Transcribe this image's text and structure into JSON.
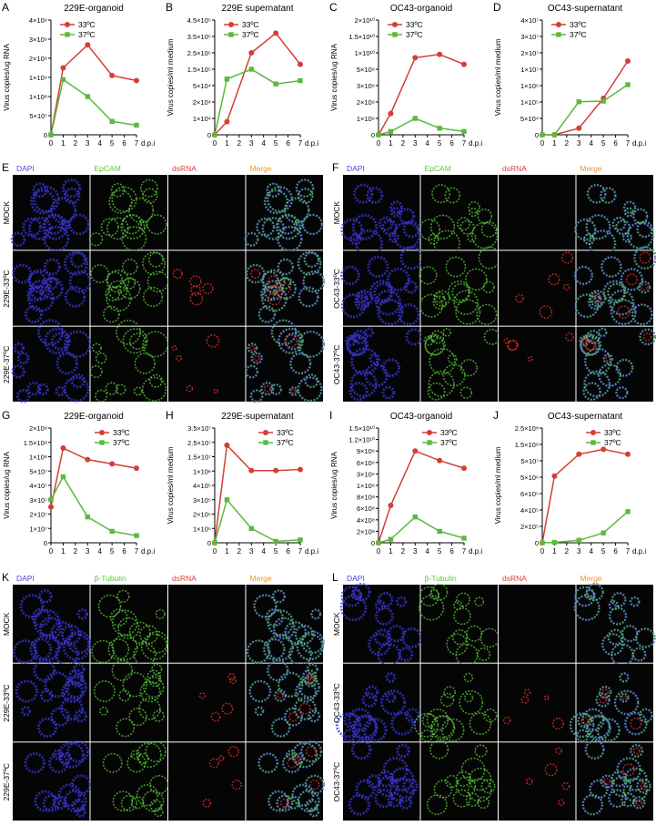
{
  "chart_data": [
    {
      "type": "line",
      "panel": "A",
      "title": "229E-organoid",
      "ylabel": "Virus copies/ug RNA",
      "xlabel": "d.p.i",
      "x": [
        0,
        1,
        3,
        5,
        7
      ],
      "xlim": [
        0,
        7
      ],
      "xticks": [
        0,
        1,
        2,
        3,
        4,
        5,
        6,
        7
      ],
      "ylim": [
        0,
        4000000000
      ],
      "yticks": [
        0,
        {
          "value": 50000000,
          "label": "5×10⁷"
        },
        {
          "value": 100000000,
          "label": "1×10⁸"
        },
        {
          "value": 1000000000,
          "label": "1×10⁹"
        },
        {
          "value": 2000000000,
          "label": "2×10⁹"
        },
        {
          "value": 3000000000,
          "label": "3×10⁹"
        },
        {
          "value": 4000000000,
          "label": "4×10⁹"
        }
      ],
      "series": [
        {
          "name": "33ºC",
          "color": "#d33f35",
          "values": [
            0,
            1500000000,
            2700000000,
            1100000000,
            850000000
          ]
        },
        {
          "name": "37ºC",
          "color": "#5cb83e",
          "values": [
            0,
            900000000,
            100000000,
            35000000,
            25000000
          ]
        }
      ]
    },
    {
      "type": "line",
      "panel": "B",
      "title": "229E supernatant",
      "ylabel": "Virus copies/ml medium",
      "xlabel": "d.p.i",
      "x": [
        0,
        1,
        3,
        5,
        7
      ],
      "xlim": [
        0,
        7
      ],
      "xticks": [
        0,
        1,
        2,
        3,
        4,
        5,
        6,
        7
      ],
      "ylim": [
        0,
        450000
      ],
      "yticks": [
        0,
        {
          "value": 10000,
          "label": "1×10⁴"
        },
        {
          "value": 20000,
          "label": "2×10⁴"
        },
        {
          "value": 50000,
          "label": "5×10⁴"
        },
        {
          "value": 150000,
          "label": "1.5×10⁵"
        },
        {
          "value": 250000,
          "label": "2.5×10⁵"
        },
        {
          "value": 350000,
          "label": "3.5×10⁵"
        },
        {
          "value": 450000,
          "label": "4.5×10⁵"
        }
      ],
      "series": [
        {
          "name": "33ºC",
          "color": "#d33f35",
          "values": [
            0,
            8000,
            250000,
            370000,
            180000
          ]
        },
        {
          "name": "37ºC",
          "color": "#5cb83e",
          "values": [
            0,
            90000,
            150000,
            60000,
            80000
          ]
        }
      ]
    },
    {
      "type": "line",
      "panel": "C",
      "title": "OC43-organoid",
      "ylabel": "Virus copies/ug RNA",
      "xlabel": "d.p.i",
      "x": [
        0,
        1,
        3,
        5,
        7
      ],
      "xlim": [
        0,
        7
      ],
      "xticks": [
        0,
        1,
        2,
        3,
        4,
        5,
        6,
        7
      ],
      "ylim": [
        0,
        20000000000
      ],
      "yticks": [
        0,
        {
          "value": 1000000000,
          "label": "1×10⁹"
        },
        {
          "value": 2000000000,
          "label": "2×10⁹"
        },
        {
          "value": 3000000000,
          "label": "3×10⁹"
        },
        {
          "value": 5000000000,
          "label": "5×10⁹"
        },
        {
          "value": 10000000000,
          "label": "1×10¹⁰"
        },
        {
          "value": 15000000000,
          "label": "1.5×10¹⁰"
        },
        {
          "value": 20000000000,
          "label": "2×10¹⁰"
        }
      ],
      "series": [
        {
          "name": "33ºC",
          "color": "#d33f35",
          "values": [
            0,
            1300000000,
            8500000000,
            9500000000,
            6500000000
          ]
        },
        {
          "name": "37ºC",
          "color": "#5cb83e",
          "values": [
            0,
            200000000,
            1000000000,
            400000000,
            200000000
          ]
        }
      ]
    },
    {
      "type": "line",
      "panel": "D",
      "title": "OC43-supernatant",
      "ylabel": "Virus copies/ml medium",
      "xlabel": "d.p.i",
      "x": [
        0,
        1,
        3,
        5,
        7
      ],
      "xlim": [
        0,
        7
      ],
      "xticks": [
        0,
        1,
        2,
        3,
        4,
        5,
        6,
        7
      ],
      "ylim": [
        0,
        40000000
      ],
      "yticks": [
        0,
        {
          "value": 50000,
          "label": "5×10⁴"
        },
        {
          "value": 100000,
          "label": "1×10⁵"
        },
        {
          "value": 1000000,
          "label": "1×10⁶"
        },
        {
          "value": 10000000,
          "label": "1×10⁷"
        },
        {
          "value": 20000000,
          "label": "2×10⁷"
        },
        {
          "value": 30000000,
          "label": "3×10⁷"
        },
        {
          "value": 40000000,
          "label": "4×10⁷"
        }
      ],
      "series": [
        {
          "name": "33ºC",
          "color": "#d33f35",
          "values": [
            0,
            0,
            20000,
            300000,
            15000000
          ]
        },
        {
          "name": "37ºC",
          "color": "#5cb83e",
          "values": [
            0,
            0,
            110000,
            150000,
            1500000
          ]
        }
      ]
    },
    {
      "type": "line",
      "panel": "G",
      "title": "229E-organoid",
      "ylabel": "Virus copies/ug RNA",
      "xlabel": "d.p.i",
      "x": [
        0,
        1,
        3,
        5,
        7
      ],
      "xlim": [
        0,
        7
      ],
      "xticks": [
        0,
        1,
        2,
        3,
        4,
        5,
        6,
        7
      ],
      "ylim": [
        0,
        200000000
      ],
      "yticks": [
        0,
        {
          "value": 10000000,
          "label": "1×10⁷"
        },
        {
          "value": 20000000,
          "label": "2×10⁷"
        },
        {
          "value": 30000000,
          "label": "3×10⁷"
        },
        {
          "value": 40000000,
          "label": "4×10⁷"
        },
        {
          "value": 50000000,
          "label": "5×10⁷"
        },
        {
          "value": 100000000,
          "label": "1×10⁸"
        },
        {
          "value": 150000000,
          "label": "1.5×10⁸"
        },
        {
          "value": 200000000,
          "label": "2×10⁸"
        }
      ],
      "series": [
        {
          "name": "33ºC",
          "color": "#d33f35",
          "values": [
            25000000,
            130000000,
            90000000,
            75000000,
            60000000
          ]
        },
        {
          "name": "37ºC",
          "color": "#5cb83e",
          "values": [
            30000000,
            46000000,
            18000000,
            8000000,
            5000000
          ]
        }
      ]
    },
    {
      "type": "line",
      "panel": "H",
      "title": "229E-supernatant",
      "ylabel": "Virus copies/ml medium",
      "xlabel": "d.p.i",
      "x": [
        0,
        1,
        3,
        5,
        7
      ],
      "xlim": [
        0,
        7
      ],
      "xticks": [
        0,
        1,
        2,
        3,
        4,
        5,
        6,
        7
      ],
      "ylim": [
        0,
        35000000
      ],
      "yticks": [
        0,
        {
          "value": 100000,
          "label": "1×10⁵"
        },
        {
          "value": 200000,
          "label": "2×10⁵"
        },
        {
          "value": 300000,
          "label": "3×10⁵"
        },
        {
          "value": 400000,
          "label": "4×10⁵"
        },
        {
          "value": 1000000,
          "label": "1×10⁶"
        },
        {
          "value": 15000000,
          "label": "1.5×10⁷"
        },
        {
          "value": 25000000,
          "label": "2.5×10⁷"
        },
        {
          "value": 35000000,
          "label": "3.5×10⁷"
        }
      ],
      "series": [
        {
          "name": "33ºC",
          "color": "#d33f35",
          "values": [
            0,
            23000000,
            1500000,
            1500000,
            2500000
          ]
        },
        {
          "name": "37ºC",
          "color": "#5cb83e",
          "values": [
            0,
            300000,
            100000,
            10000,
            20000
          ]
        }
      ]
    },
    {
      "type": "line",
      "panel": "I",
      "title": "OC43-organoid",
      "ylabel": "Virus copies/ug RNA",
      "xlabel": "d.p.i",
      "x": [
        0,
        1,
        3,
        5,
        7
      ],
      "xlim": [
        0,
        7
      ],
      "xticks": [
        0,
        1,
        2,
        3,
        4,
        5,
        6,
        7
      ],
      "ylim": [
        0,
        15000000000
      ],
      "yticks": [
        0,
        {
          "value": 200000000,
          "label": "2×10⁸"
        },
        {
          "value": 400000000,
          "label": "4×10⁸"
        },
        {
          "value": 600000000,
          "label": "6×10⁸"
        },
        {
          "value": 800000000,
          "label": "8×10⁸"
        },
        {
          "value": 1000000000,
          "label": "1×10⁹"
        },
        {
          "value": 3000000000,
          "label": "3×10⁹"
        },
        {
          "value": 6000000000,
          "label": "6×10⁹"
        },
        {
          "value": 9000000000,
          "label": "9×10⁹"
        },
        {
          "value": 12000000000,
          "label": "1.2×10¹⁰"
        },
        {
          "value": 15000000000,
          "label": "1.5×10¹⁰"
        }
      ],
      "series": [
        {
          "name": "33ºC",
          "color": "#d33f35",
          "values": [
            0,
            650000000,
            9000000000,
            6500000000,
            4500000000
          ]
        },
        {
          "name": "37ºC",
          "color": "#5cb83e",
          "values": [
            0,
            60000000,
            450000000,
            200000000,
            80000000
          ]
        }
      ]
    },
    {
      "type": "line",
      "panel": "J",
      "title": "OC43-supernatant",
      "ylabel": "Virus copies/ml medium",
      "xlabel": "d.p.i",
      "x": [
        0,
        1,
        3,
        5,
        7
      ],
      "xlim": [
        0,
        7
      ],
      "xticks": [
        0,
        1,
        2,
        3,
        4,
        5,
        6,
        7
      ],
      "ylim": [
        0,
        250000000
      ],
      "yticks": [
        0,
        {
          "value": 200000,
          "label": "2×10⁵"
        },
        {
          "value": 400000,
          "label": "4×10⁵"
        },
        {
          "value": 600000,
          "label": "6×10⁵"
        },
        {
          "value": 5000000,
          "label": "5×10⁶"
        },
        {
          "value": 50000000,
          "label": "5×10⁷"
        },
        {
          "value": 150000000,
          "label": "1.5×10⁸"
        },
        {
          "value": 250000000,
          "label": "2.5×10⁸"
        }
      ],
      "series": [
        {
          "name": "33ºC",
          "color": "#d33f35",
          "values": [
            0,
            8000000,
            90000000,
            120000000,
            90000000
          ]
        },
        {
          "name": "37ºC",
          "color": "#5cb83e",
          "values": [
            0,
            5000,
            30000,
            120000,
            380000
          ]
        }
      ]
    }
  ],
  "image_panels": [
    {
      "panel": "E",
      "columns": [
        "DAPI",
        "EpCAM",
        "dsRNA",
        "Merge"
      ],
      "column_colors": [
        "#4a45d8",
        "#5fc43a",
        "#d8403a",
        "#e8963a"
      ],
      "rows": [
        "MOCK",
        "229E-33ºC",
        "229E-37ºC"
      ]
    },
    {
      "panel": "F",
      "columns": [
        "DAPI",
        "EpCAM",
        "dsRNA",
        "Merge"
      ],
      "column_colors": [
        "#4a45d8",
        "#5fc43a",
        "#d8403a",
        "#e8963a"
      ],
      "rows": [
        "MOCK",
        "OC43-33ºC",
        "OC43-37ºC"
      ]
    },
    {
      "panel": "K",
      "columns": [
        "DAPI",
        "β-Tubulin",
        "dsRNA",
        "Merge"
      ],
      "column_colors": [
        "#4a45d8",
        "#5fc43a",
        "#d8403a",
        "#e8963a"
      ],
      "rows": [
        "MOCK",
        "229E-33ºC",
        "229E-37ºC"
      ]
    },
    {
      "panel": "L",
      "columns": [
        "DAPI",
        "β-Tubulin",
        "dsRNA",
        "Merge"
      ],
      "column_colors": [
        "#4a45d8",
        "#5fc43a",
        "#d8403a",
        "#e8963a"
      ],
      "rows": [
        "MOCK",
        "OC43-33ºC",
        "OC43-37ºC"
      ]
    }
  ]
}
